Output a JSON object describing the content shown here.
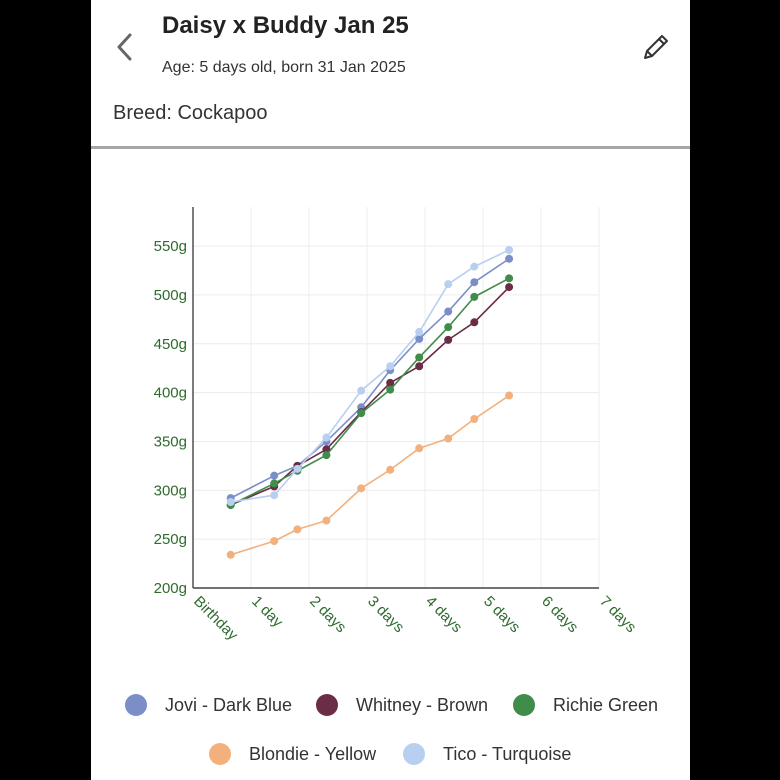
{
  "header": {
    "title": "Daisy x Buddy Jan 25",
    "subtitle": "Age: 5 days old, born 31 Jan 2025",
    "breed": "Breed: Cockapoo",
    "back_icon": "chevron-left-icon",
    "edit_icon": "pencil-icon"
  },
  "chart_data": {
    "type": "line",
    "x_tick_labels": [
      "Birthday",
      "1 day",
      "2 days",
      "3 days",
      "4 days",
      "5 days",
      "6 days",
      "7 days"
    ],
    "xlim": [
      0,
      7
    ],
    "y_tick_labels": [
      "200g",
      "250g",
      "300g",
      "350g",
      "400g",
      "450g",
      "500g",
      "550g"
    ],
    "ylim": [
      200,
      590
    ],
    "grid": true,
    "axis_label_color": "#2e6b2e",
    "legend_position": "bottom",
    "series": [
      {
        "name": "Jovi - Dark Blue",
        "color": "#7b8ec8",
        "x": [
          0.65,
          1.4,
          1.8,
          2.3,
          2.9,
          3.4,
          3.9,
          4.4,
          4.85,
          5.45
        ],
        "y": [
          292,
          315,
          325,
          350,
          385,
          423,
          455,
          483,
          513,
          537
        ]
      },
      {
        "name": "Whitney - Brown",
        "color": "#6b2c45",
        "x": [
          0.65,
          1.4,
          1.8,
          2.3,
          2.9,
          3.4,
          3.9,
          4.4,
          4.85,
          5.45
        ],
        "y": [
          285,
          304,
          325,
          342,
          380,
          410,
          427,
          454,
          472,
          508
        ]
      },
      {
        "name": "Richie Green",
        "color": "#3f8c4b",
        "x": [
          0.65,
          1.4,
          1.8,
          2.3,
          2.9,
          3.4,
          3.9,
          4.4,
          4.85,
          5.45
        ],
        "y": [
          285,
          307,
          320,
          336,
          379,
          403,
          436,
          467,
          498,
          517
        ]
      },
      {
        "name": "Blondie - Yellow",
        "color": "#f4b07c",
        "x": [
          0.65,
          1.4,
          1.8,
          2.3,
          2.9,
          3.4,
          3.9,
          4.4,
          4.85,
          5.45
        ],
        "y": [
          234,
          248,
          260,
          269,
          302,
          321,
          343,
          353,
          373,
          397
        ]
      },
      {
        "name": "Tico - Turquoise",
        "color": "#b9cff0",
        "x": [
          0.65,
          1.4,
          1.8,
          2.3,
          2.9,
          3.4,
          3.9,
          4.4,
          4.85,
          5.45
        ],
        "y": [
          288,
          295,
          322,
          354,
          402,
          427,
          462,
          511,
          529,
          546
        ]
      }
    ]
  },
  "legend": [
    {
      "label": "Jovi - Dark Blue",
      "color": "#7b8ec8"
    },
    {
      "label": "Whitney - Brown",
      "color": "#6b2c45"
    },
    {
      "label": "Richie Green",
      "color": "#3f8c4b"
    },
    {
      "label": "Blondie - Yellow",
      "color": "#f4b07c"
    },
    {
      "label": "Tico - Turquoise",
      "color": "#b9cff0"
    }
  ]
}
